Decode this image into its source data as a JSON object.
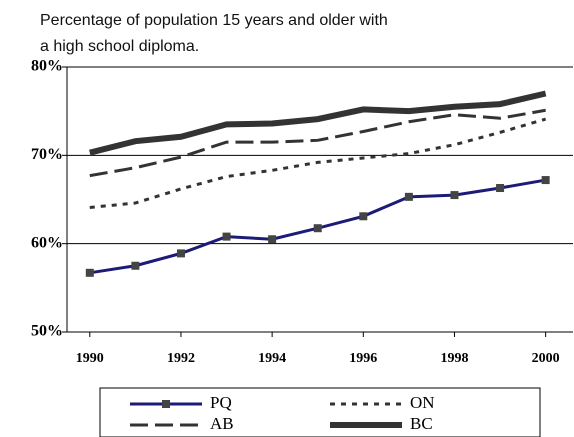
{
  "chart_data": {
    "type": "line",
    "title": "Percentage of population 15 years and older with a high school diploma.",
    "x": [
      1990,
      1991,
      1992,
      1993,
      1994,
      1995,
      1996,
      1997,
      1998,
      1999,
      2000
    ],
    "xlim": [
      1989.5,
      2000.6
    ],
    "xticks": [
      1990,
      1992,
      1994,
      1996,
      1998,
      2000
    ],
    "ylim": [
      50,
      80
    ],
    "yticks": [
      {
        "value": 50,
        "label": "50%"
      },
      {
        "value": 60,
        "label": "60%"
      },
      {
        "value": 70,
        "label": "70%"
      },
      {
        "value": 80,
        "label": "80%"
      }
    ],
    "grid": true,
    "legend": "bottom",
    "series": [
      {
        "name": "PQ",
        "color": "#1c1c78",
        "style": "markers",
        "values": [
          56.7,
          57.5,
          58.9,
          60.8,
          60.5,
          61.75,
          63.1,
          65.3,
          65.5,
          66.3,
          67.2
        ]
      },
      {
        "name": "ON",
        "color": "#333333",
        "style": "dotted",
        "values": [
          64.1,
          64.6,
          66.2,
          67.6,
          68.3,
          69.2,
          69.7,
          70.2,
          71.2,
          72.6,
          74.1
        ]
      },
      {
        "name": "AB",
        "color": "#333333",
        "style": "dashed",
        "values": [
          67.7,
          68.6,
          69.8,
          71.5,
          71.5,
          71.7,
          72.7,
          73.8,
          74.6,
          74.2,
          75.1
        ]
      },
      {
        "name": "BC",
        "color": "#333333",
        "style": "thick",
        "values": [
          70.3,
          71.6,
          72.1,
          73.5,
          73.6,
          74.1,
          75.2,
          75.0,
          75.5,
          75.8,
          77.0
        ]
      }
    ]
  }
}
